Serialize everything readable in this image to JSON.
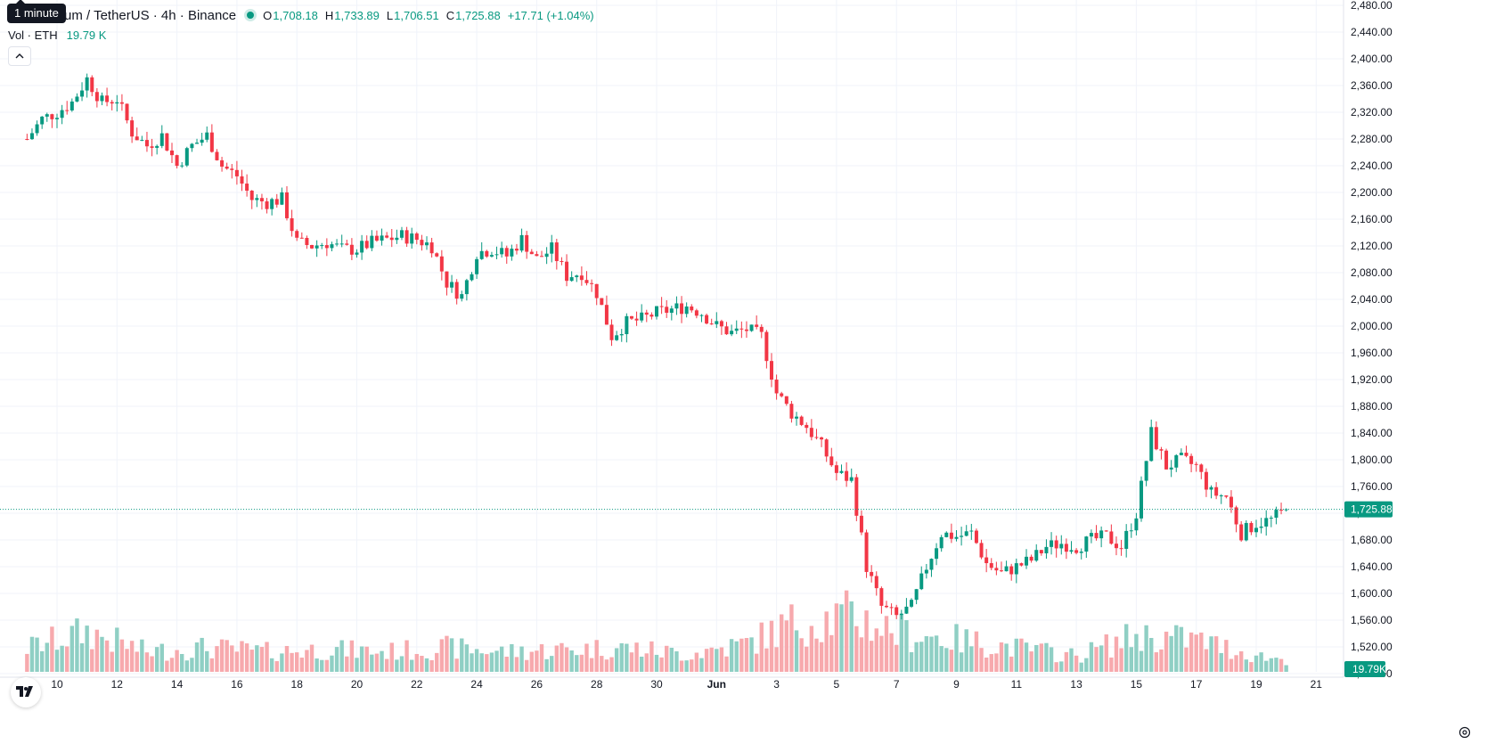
{
  "header": {
    "title": "um / TetherUS · 4h · Binance",
    "tooltip": "1 minute",
    "ohlc": [
      {
        "key": "O",
        "value": "1,708.18"
      },
      {
        "key": "H",
        "value": "1,733.89"
      },
      {
        "key": "L",
        "value": "1,706.51"
      },
      {
        "key": "C",
        "value": "1,725.88"
      }
    ],
    "change": "+17.71 (+1.04%)",
    "volume_label": "Vol · ETH",
    "volume_value": "19.79 K"
  },
  "icons": {
    "market_status": "market-open-dot-icon",
    "collapse": "chevron-up-icon",
    "logo": "tradingview-logo-icon",
    "settings": "gear-icon"
  },
  "colors": {
    "up": "#089981",
    "down": "#f23645",
    "up_volume": "#8fcfc4",
    "down_volume": "#f7a9ad",
    "grid": "#f0f3fa",
    "text": "#131722"
  },
  "chart_data": {
    "type": "candlestick",
    "symbol": "um / TetherUS",
    "interval": "4h",
    "exchange": "Binance",
    "x_tick_labels": [
      "10",
      "12",
      "14",
      "16",
      "18",
      "20",
      "22",
      "24",
      "26",
      "28",
      "30",
      "Jun",
      "3",
      "5",
      "7",
      "9",
      "11",
      "13",
      "15",
      "17",
      "19",
      "21"
    ],
    "y_tick_labels": [
      "2,480.00",
      "2,440.00",
      "2,400.00",
      "2,360.00",
      "2,320.00",
      "2,280.00",
      "2,240.00",
      "2,200.00",
      "2,160.00",
      "2,120.00",
      "2,080.00",
      "2,040.00",
      "2,000.00",
      "1,960.00",
      "1,920.00",
      "1,880.00",
      "1,840.00",
      "1,800.00",
      "1,760.00",
      "1,720.00",
      "1,680.00",
      "1,640.00",
      "1,600.00",
      "1,560.00",
      "1,520.00",
      "1,480.00"
    ],
    "ylim": [
      1460,
      2495
    ],
    "price_line": {
      "value": 1725.88,
      "label": "1,725.88"
    },
    "volume_badge": "19.79K",
    "grid": true,
    "close_path": [
      {
        "day": 9.0,
        "close": 2280
      },
      {
        "day": 9.5,
        "close": 2310
      },
      {
        "day": 10.0,
        "close": 2320
      },
      {
        "day": 10.5,
        "close": 2335
      },
      {
        "day": 11.0,
        "close": 2370
      },
      {
        "day": 11.5,
        "close": 2335
      },
      {
        "day": 12.0,
        "close": 2340
      },
      {
        "day": 12.5,
        "close": 2290
      },
      {
        "day": 13.0,
        "close": 2270
      },
      {
        "day": 13.5,
        "close": 2285
      },
      {
        "day": 14.0,
        "close": 2240
      },
      {
        "day": 14.5,
        "close": 2270
      },
      {
        "day": 15.0,
        "close": 2285
      },
      {
        "day": 15.5,
        "close": 2240
      },
      {
        "day": 16.0,
        "close": 2225
      },
      {
        "day": 16.5,
        "close": 2190
      },
      {
        "day": 17.0,
        "close": 2185
      },
      {
        "day": 17.5,
        "close": 2190
      },
      {
        "day": 18.0,
        "close": 2125
      },
      {
        "day": 18.5,
        "close": 2120
      },
      {
        "day": 19.0,
        "close": 2125
      },
      {
        "day": 19.5,
        "close": 2115
      },
      {
        "day": 20.0,
        "close": 2115
      },
      {
        "day": 20.5,
        "close": 2125
      },
      {
        "day": 21.0,
        "close": 2130
      },
      {
        "day": 21.5,
        "close": 2135
      },
      {
        "day": 22.0,
        "close": 2130
      },
      {
        "day": 22.5,
        "close": 2120
      },
      {
        "day": 23.0,
        "close": 2065
      },
      {
        "day": 23.5,
        "close": 2045
      },
      {
        "day": 24.0,
        "close": 2110
      },
      {
        "day": 24.5,
        "close": 2115
      },
      {
        "day": 25.0,
        "close": 2105
      },
      {
        "day": 25.5,
        "close": 2130
      },
      {
        "day": 26.0,
        "close": 2100
      },
      {
        "day": 26.5,
        "close": 2115
      },
      {
        "day": 27.0,
        "close": 2075
      },
      {
        "day": 27.5,
        "close": 2080
      },
      {
        "day": 28.0,
        "close": 2050
      },
      {
        "day": 28.5,
        "close": 1985
      },
      {
        "day": 29.0,
        "close": 2005
      },
      {
        "day": 29.5,
        "close": 2010
      },
      {
        "day": 30.0,
        "close": 2020
      },
      {
        "day": 30.5,
        "close": 2025
      },
      {
        "day": 31.0,
        "close": 2030
      },
      {
        "day": 31.5,
        "close": 2020
      },
      {
        "day": 32.0,
        "close": 2000
      },
      {
        "day": 32.5,
        "close": 1990
      },
      {
        "day": 33.0,
        "close": 1995
      },
      {
        "day": 33.5,
        "close": 1985
      },
      {
        "day": 34.0,
        "close": 1900
      },
      {
        "day": 34.5,
        "close": 1870
      },
      {
        "day": 35.0,
        "close": 1850
      },
      {
        "day": 35.5,
        "close": 1820
      },
      {
        "day": 36.0,
        "close": 1780
      },
      {
        "day": 36.5,
        "close": 1770
      },
      {
        "day": 37.0,
        "close": 1640
      },
      {
        "day": 37.5,
        "close": 1580
      },
      {
        "day": 38.0,
        "close": 1565
      },
      {
        "day": 38.5,
        "close": 1580
      },
      {
        "day": 39.0,
        "close": 1640
      },
      {
        "day": 39.5,
        "close": 1690
      },
      {
        "day": 40.0,
        "close": 1685
      },
      {
        "day": 40.5,
        "close": 1690
      },
      {
        "day": 41.0,
        "close": 1645
      },
      {
        "day": 41.5,
        "close": 1630
      },
      {
        "day": 42.0,
        "close": 1640
      },
      {
        "day": 42.5,
        "close": 1650
      },
      {
        "day": 43.0,
        "close": 1670
      },
      {
        "day": 43.5,
        "close": 1675
      },
      {
        "day": 44.0,
        "close": 1670
      },
      {
        "day": 44.5,
        "close": 1680
      },
      {
        "day": 45.0,
        "close": 1685
      },
      {
        "day": 45.5,
        "close": 1670
      },
      {
        "day": 46.0,
        "close": 1720
      },
      {
        "day": 46.5,
        "close": 1840
      },
      {
        "day": 47.0,
        "close": 1790
      },
      {
        "day": 47.5,
        "close": 1800
      },
      {
        "day": 48.0,
        "close": 1790
      },
      {
        "day": 48.5,
        "close": 1750
      },
      {
        "day": 49.0,
        "close": 1745
      },
      {
        "day": 49.5,
        "close": 1690
      },
      {
        "day": 50.0,
        "close": 1705
      },
      {
        "day": 50.5,
        "close": 1710
      },
      {
        "day": 51.0,
        "close": 1726
      }
    ],
    "volume_path": [
      {
        "day": 9.0,
        "vol": 0.3
      },
      {
        "day": 11.0,
        "vol": 0.5
      },
      {
        "day": 13.0,
        "vol": 0.25
      },
      {
        "day": 15.0,
        "vol": 0.3
      },
      {
        "day": 17.0,
        "vol": 0.25
      },
      {
        "day": 19.0,
        "vol": 0.28
      },
      {
        "day": 21.0,
        "vol": 0.25
      },
      {
        "day": 23.0,
        "vol": 0.3
      },
      {
        "day": 25.0,
        "vol": 0.25
      },
      {
        "day": 27.0,
        "vol": 0.28
      },
      {
        "day": 29.0,
        "vol": 0.3
      },
      {
        "day": 31.0,
        "vol": 0.22
      },
      {
        "day": 33.0,
        "vol": 0.35
      },
      {
        "day": 34.5,
        "vol": 0.6
      },
      {
        "day": 36.5,
        "vol": 0.7
      },
      {
        "day": 38.0,
        "vol": 0.5
      },
      {
        "day": 40.0,
        "vol": 0.4
      },
      {
        "day": 42.0,
        "vol": 0.3
      },
      {
        "day": 44.0,
        "vol": 0.2
      },
      {
        "day": 46.0,
        "vol": 0.45
      },
      {
        "day": 48.0,
        "vol": 0.4
      },
      {
        "day": 50.0,
        "vol": 0.2
      },
      {
        "day": 51.0,
        "vol": 0.15
      }
    ]
  }
}
